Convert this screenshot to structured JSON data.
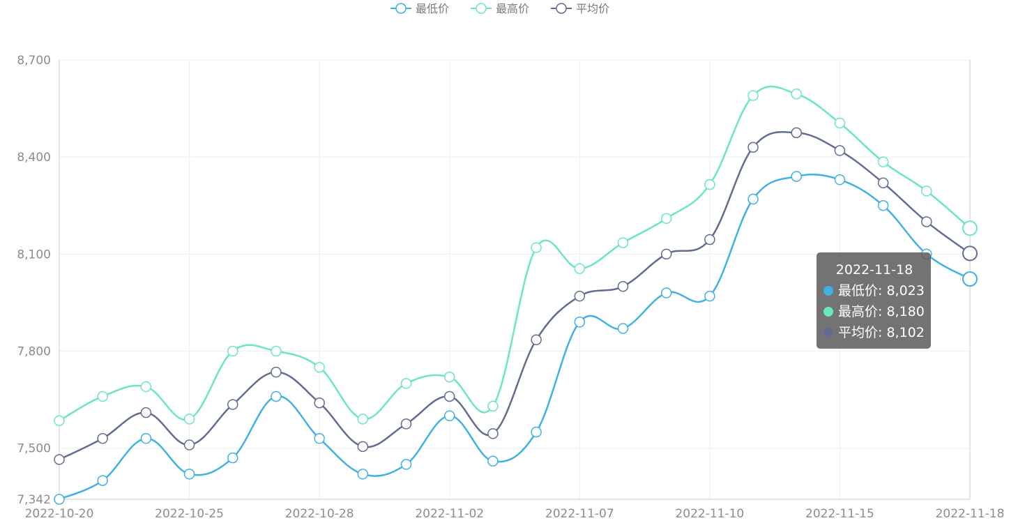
{
  "chart_data": {
    "type": "line",
    "title": "",
    "xlabel": "",
    "ylabel": "",
    "legend": "top-center",
    "grid": true,
    "smooth": true,
    "x": [
      "2022-10-20",
      "2022-10-21",
      "2022-10-24",
      "2022-10-25",
      "2022-10-26",
      "2022-10-27",
      "2022-10-28",
      "2022-10-31",
      "2022-11-01",
      "2022-11-02",
      "2022-11-03",
      "2022-11-04",
      "2022-11-07",
      "2022-11-08",
      "2022-11-09",
      "2022-11-10",
      "2022-11-11",
      "2022-11-14",
      "2022-11-15",
      "2022-11-16",
      "2022-11-17",
      "2022-11-18"
    ],
    "xticks": [
      "2022-10-20",
      "2022-10-25",
      "2022-10-28",
      "2022-11-02",
      "2022-11-07",
      "2022-11-10",
      "2022-11-15",
      "2022-11-18"
    ],
    "ylim": [
      7342,
      8700
    ],
    "yticks": [
      7342,
      7500,
      7800,
      8100,
      8400,
      8700
    ],
    "ytick_labels": [
      "7,342",
      "7,500",
      "7,800",
      "8,100",
      "8,400",
      "8,700"
    ],
    "series": [
      {
        "name": "最低价",
        "color": "#3fb1e3",
        "values": [
          7342,
          7400,
          7530,
          7420,
          7470,
          7660,
          7530,
          7420,
          7450,
          7600,
          7460,
          7550,
          7890,
          7870,
          7980,
          7970,
          8270,
          8340,
          8330,
          8250,
          8100,
          8023
        ]
      },
      {
        "name": "最高价",
        "color": "#6be6c1",
        "values": [
          7585,
          7660,
          7690,
          7590,
          7800,
          7800,
          7750,
          7590,
          7700,
          7720,
          7630,
          8120,
          8055,
          8135,
          8210,
          8315,
          8590,
          8595,
          8505,
          8385,
          8295,
          8180
        ]
      },
      {
        "name": "平均价",
        "color": "#626c91",
        "values": [
          7465,
          7530,
          7610,
          7510,
          7635,
          7735,
          7640,
          7505,
          7575,
          7660,
          7545,
          7835,
          7970,
          8000,
          8100,
          8145,
          8430,
          8475,
          8420,
          8320,
          8200,
          8102
        ]
      }
    ],
    "tooltip": {
      "title": "2022-11-18",
      "rows": [
        {
          "label": "最低价: 8,023",
          "color": "#3fb1e3"
        },
        {
          "label": "最高价: 8,180",
          "color": "#6be6c1"
        },
        {
          "label": "平均价: 8,102",
          "color": "#626c91"
        }
      ]
    }
  }
}
